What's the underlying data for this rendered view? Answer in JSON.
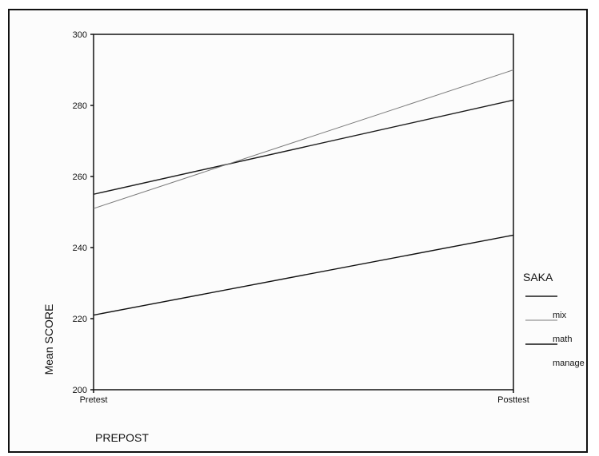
{
  "chart_data": {
    "type": "line",
    "xlabel": "PREPOST",
    "ylabel": "Mean SCORE",
    "categories": [
      "Pretest",
      "Posttest"
    ],
    "ylim": [
      200,
      300
    ],
    "yticks": [
      200,
      220,
      240,
      260,
      280,
      300
    ],
    "legend": {
      "title": "SAKA",
      "placement": "right"
    },
    "series": [
      {
        "name": "mix",
        "values": [
          255,
          281.5
        ],
        "color": "#1a1a1a"
      },
      {
        "name": "math",
        "values": [
          251,
          290
        ],
        "color": "#7a7a7a"
      },
      {
        "name": "manage",
        "values": [
          221,
          243.5
        ],
        "color": "#111111"
      }
    ],
    "grid": false
  }
}
